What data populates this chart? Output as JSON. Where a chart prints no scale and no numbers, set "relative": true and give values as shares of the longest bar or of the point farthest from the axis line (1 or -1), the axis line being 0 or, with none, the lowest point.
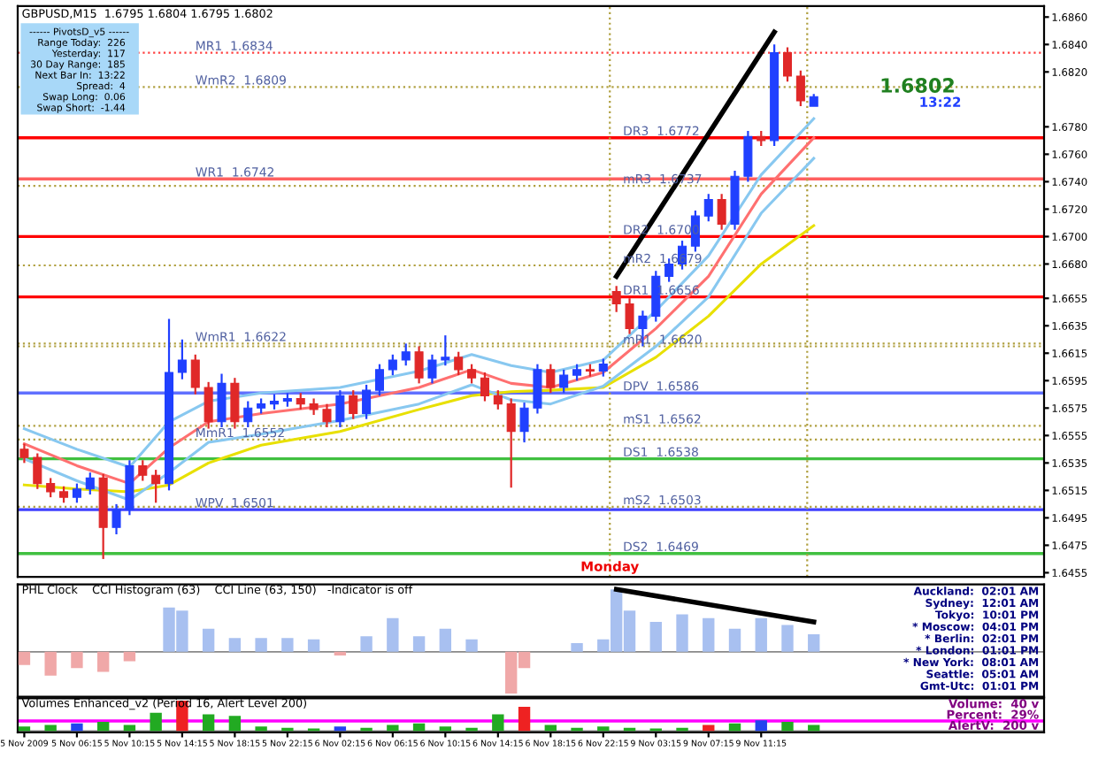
{
  "chart_data": [
    {
      "type": "candlestick",
      "title": "GBPUSD,M15  1.6795 1.6804 1.6795 1.6802",
      "categories": [
        null,
        null,
        null,
        null,
        null,
        null,
        null,
        null,
        null,
        null,
        null,
        null,
        null,
        null,
        null,
        null,
        null,
        null,
        null,
        null,
        null,
        null,
        null,
        null,
        null,
        null,
        null,
        null,
        null,
        null,
        null,
        null,
        null,
        null,
        null,
        null,
        null,
        null,
        null,
        null,
        null,
        null,
        null,
        null,
        null,
        null,
        null,
        null,
        null,
        null,
        null,
        null,
        null,
        null,
        null,
        null,
        null,
        null,
        null,
        null,
        null,
        null,
        null,
        null,
        null,
        null,
        null,
        null,
        null,
        null,
        null,
        null,
        null,
        null,
        null,
        null,
        null,
        null
      ],
      "ohlc": [
        [
          1.6545,
          1.6549,
          1.6535,
          1.6539
        ],
        [
          1.6539,
          1.6542,
          1.6516,
          1.652
        ],
        [
          1.652,
          1.6524,
          1.651,
          1.6514
        ],
        [
          1.6514,
          1.6518,
          1.6506,
          1.651
        ],
        [
          1.651,
          1.652,
          1.6506,
          1.6516
        ],
        [
          1.6516,
          1.6528,
          1.6512,
          1.6524
        ],
        [
          1.6524,
          1.6527,
          1.6465,
          1.6488
        ],
        [
          1.6488,
          1.6505,
          1.6483,
          1.6501
        ],
        [
          1.6501,
          1.6537,
          1.6497,
          1.6533
        ],
        [
          1.6533,
          1.6537,
          1.6522,
          1.6526
        ],
        [
          1.6526,
          1.653,
          1.6506,
          1.652
        ],
        [
          1.652,
          1.664,
          1.6515,
          1.6601
        ],
        [
          1.6601,
          1.6625,
          1.6596,
          1.661
        ],
        [
          1.661,
          1.6614,
          1.6585,
          1.659
        ],
        [
          1.659,
          1.6594,
          1.656,
          1.6565
        ],
        [
          1.6565,
          1.66,
          1.6561,
          1.6593
        ],
        [
          1.6593,
          1.6597,
          1.656,
          1.6565
        ],
        [
          1.6565,
          1.658,
          1.6561,
          1.6575
        ],
        [
          1.6575,
          1.6582,
          1.6571,
          1.6578
        ],
        [
          1.6578,
          1.6585,
          1.6574,
          1.658
        ],
        [
          1.658,
          1.6586,
          1.6576,
          1.6582
        ],
        [
          1.6582,
          1.6586,
          1.6574,
          1.6578
        ],
        [
          1.6578,
          1.6582,
          1.657,
          1.6574
        ],
        [
          1.6574,
          1.6578,
          1.6561,
          1.6565
        ],
        [
          1.6565,
          1.6588,
          1.6561,
          1.6584
        ],
        [
          1.6584,
          1.6588,
          1.6567,
          1.6571
        ],
        [
          1.6571,
          1.6592,
          1.6567,
          1.6588
        ],
        [
          1.6588,
          1.6607,
          1.6584,
          1.6603
        ],
        [
          1.6603,
          1.6614,
          1.6599,
          1.661
        ],
        [
          1.661,
          1.6622,
          1.6606,
          1.6616
        ],
        [
          1.6616,
          1.662,
          1.6593,
          1.6597
        ],
        [
          1.6597,
          1.6614,
          1.6593,
          1.661
        ],
        [
          1.661,
          1.6628,
          1.6606,
          1.6612
        ],
        [
          1.6612,
          1.6616,
          1.6599,
          1.6603
        ],
        [
          1.6603,
          1.6607,
          1.6593,
          1.6597
        ],
        [
          1.6597,
          1.6601,
          1.658,
          1.6584
        ],
        [
          1.6584,
          1.6588,
          1.6574,
          1.6578
        ],
        [
          1.6578,
          1.6582,
          1.6517,
          1.6558
        ],
        [
          1.6558,
          1.6579,
          1.655,
          1.6575
        ],
        [
          1.6575,
          1.6607,
          1.6571,
          1.6603
        ],
        [
          1.6603,
          1.6607,
          1.6586,
          1.659
        ],
        [
          1.659,
          1.6603,
          1.6586,
          1.6599
        ],
        [
          1.6599,
          1.6607,
          1.6595,
          1.6603
        ],
        [
          1.6603,
          1.6607,
          1.6598,
          1.6602
        ],
        [
          1.6602,
          1.6611,
          1.6598,
          1.6607
        ],
        [
          1.666,
          1.6664,
          1.6645,
          1.6651
        ],
        [
          1.6651,
          1.6655,
          1.6629,
          1.6633
        ],
        [
          1.6633,
          1.6646,
          1.662,
          1.6642
        ],
        [
          1.6642,
          1.6675,
          1.6638,
          1.6671
        ],
        [
          1.6671,
          1.6684,
          1.6667,
          1.668
        ],
        [
          1.668,
          1.6697,
          1.6676,
          1.6693
        ],
        [
          1.6693,
          1.6719,
          1.6689,
          1.6715
        ],
        [
          1.6715,
          1.6731,
          1.6711,
          1.6727
        ],
        [
          1.6727,
          1.6731,
          1.6705,
          1.6709
        ],
        [
          1.6709,
          1.6748,
          1.6705,
          1.6744
        ],
        [
          1.6744,
          1.6777,
          1.674,
          1.6773
        ],
        [
          1.6773,
          1.6777,
          1.6766,
          1.677
        ],
        [
          1.677,
          1.684,
          1.6766,
          1.6834
        ],
        [
          1.6834,
          1.6838,
          1.6813,
          1.6817
        ],
        [
          1.6817,
          1.6821,
          1.6795,
          1.6799
        ],
        [
          1.6795,
          1.6804,
          1.6795,
          1.6802
        ],
        null,
        null,
        null,
        null,
        null,
        null,
        null,
        null,
        null,
        null,
        null,
        null,
        null,
        null,
        null,
        null,
        null
      ],
      "colors": [
        "#e02828",
        "#e02828",
        "#e02828",
        "#e02828",
        "#2040ff",
        "#2040ff",
        "#e02828",
        "#2040ff",
        "#2040ff",
        "#e02828",
        "#e02828",
        "#2040ff",
        "#2040ff",
        "#e02828",
        "#e02828",
        "#2040ff",
        "#e02828",
        "#2040ff",
        "#2040ff",
        "#2040ff",
        "#2040ff",
        "#e02828",
        "#e02828",
        "#e02828",
        "#2040ff",
        "#e02828",
        "#2040ff",
        "#2040ff",
        "#2040ff",
        "#2040ff",
        "#e02828",
        "#2040ff",
        "#2040ff",
        "#e02828",
        "#e02828",
        "#e02828",
        "#e02828",
        "#e02828",
        "#2040ff",
        "#2040ff",
        "#e02828",
        "#2040ff",
        "#2040ff",
        "#e02828",
        "#2040ff",
        "#e02828",
        "#e02828",
        "#2040ff",
        "#2040ff",
        "#2040ff",
        "#2040ff",
        "#2040ff",
        "#2040ff",
        "#e02828",
        "#2040ff",
        "#2040ff",
        "#e02828",
        "#2040ff",
        "#e02828",
        "#e02828",
        "#2040ff",
        null,
        null,
        null,
        null,
        null,
        null,
        null,
        null,
        null,
        null,
        null,
        null,
        null,
        null,
        null,
        null,
        null
      ],
      "series": [
        {
          "type": "line",
          "color": "#e8e000",
          "values": [
            1.6519,
            null,
            null,
            null,
            1.6516,
            null,
            null,
            null,
            1.6514,
            null,
            null,
            1.6519,
            null,
            null,
            1.6535,
            null,
            null,
            null,
            1.6548,
            null,
            null,
            null,
            null,
            null,
            1.6558,
            null,
            null,
            null,
            null,
            null,
            1.6574,
            null,
            null,
            null,
            1.6584,
            null,
            null,
            1.6587,
            null,
            null,
            1.6588,
            null,
            null,
            null,
            1.659,
            null,
            null,
            null,
            1.6612,
            null,
            null,
            null,
            1.6642,
            null,
            null,
            null,
            1.668,
            null,
            null,
            null,
            1.6708,
            null,
            null,
            null,
            null,
            null,
            null,
            null,
            null,
            null,
            null,
            null,
            null,
            null,
            null,
            null,
            null,
            null
          ]
        },
        {
          "type": "line",
          "color": "#ff7070",
          "values": [
            1.6549,
            null,
            null,
            null,
            1.6533,
            null,
            null,
            null,
            1.652,
            null,
            null,
            1.6546,
            null,
            null,
            1.6565,
            null,
            null,
            null,
            1.6571,
            null,
            null,
            null,
            null,
            null,
            1.6578,
            null,
            null,
            null,
            null,
            null,
            1.659,
            null,
            null,
            null,
            1.6603,
            null,
            null,
            1.6593,
            null,
            null,
            1.659,
            null,
            null,
            null,
            1.6601,
            null,
            null,
            null,
            1.6633,
            null,
            null,
            null,
            1.6671,
            null,
            null,
            null,
            1.6731,
            null,
            null,
            null,
            1.6772,
            null,
            null,
            null,
            null,
            null,
            null,
            null,
            null,
            null,
            null,
            null,
            null,
            null,
            null,
            null,
            null,
            null
          ]
        },
        {
          "type": "line",
          "color": "#88c8f0",
          "values": [
            1.656,
            null,
            null,
            null,
            1.6545,
            null,
            null,
            null,
            1.6532,
            null,
            null,
            1.6565,
            null,
            null,
            1.658,
            null,
            null,
            null,
            1.6586,
            null,
            null,
            null,
            null,
            null,
            1.659,
            null,
            null,
            null,
            null,
            null,
            1.6602,
            null,
            null,
            null,
            1.6614,
            null,
            null,
            1.6606,
            null,
            null,
            1.6601,
            null,
            null,
            null,
            1.661,
            null,
            null,
            null,
            1.6646,
            null,
            null,
            null,
            1.6686,
            null,
            null,
            null,
            1.6745,
            null,
            null,
            null,
            1.6786,
            null,
            null,
            null,
            null,
            null,
            null,
            null,
            null,
            null,
            null,
            null,
            null,
            null,
            null,
            null,
            null,
            null
          ]
        },
        {
          "type": "line",
          "color": "#88c8f0",
          "values": [
            1.6538,
            null,
            null,
            null,
            1.6522,
            null,
            null,
            null,
            1.6508,
            null,
            null,
            1.6528,
            null,
            null,
            1.655,
            null,
            null,
            null,
            1.6556,
            null,
            null,
            null,
            null,
            null,
            1.6566,
            null,
            null,
            null,
            null,
            null,
            1.6578,
            null,
            null,
            null,
            1.6592,
            null,
            null,
            1.6581,
            null,
            null,
            1.6578,
            null,
            null,
            null,
            1.6591,
            null,
            null,
            null,
            1.662,
            null,
            null,
            null,
            1.6656,
            null,
            null,
            null,
            1.6717,
            null,
            null,
            null,
            1.6757,
            null,
            null,
            null,
            null,
            null,
            null,
            null,
            null,
            null,
            null,
            null,
            null,
            null,
            null,
            null,
            null,
            null
          ]
        },
        {
          "type": "line",
          "color": "#000000",
          "values": [
            null,
            null,
            null,
            null,
            null,
            null,
            null,
            null,
            null,
            null,
            null,
            null,
            null,
            null,
            null,
            null,
            null,
            null,
            null,
            null,
            null,
            null,
            null,
            null,
            null,
            null,
            null,
            null,
            null,
            null,
            null,
            null,
            null,
            null,
            null,
            null,
            null,
            null,
            null,
            null,
            null,
            null,
            null,
            null,
            null,
            1.6671,
            null,
            null,
            null,
            null,
            null,
            null,
            null,
            null,
            null,
            null,
            null,
            1.6849,
            null,
            null,
            null,
            null,
            null,
            null,
            null,
            null,
            null,
            null,
            null,
            null,
            null,
            null,
            null,
            null,
            null,
            null,
            null,
            null
          ]
        }
      ],
      "ref_lines": [
        {
          "axis": "y",
          "value": 1.6834,
          "label": "MR1  1.6834",
          "color": "#ff4040",
          "line_style": "dotted"
        },
        {
          "axis": "y",
          "value": 1.6809,
          "label": "WmR2  1.6809",
          "color": "#b0a040",
          "line_style": "dotted"
        },
        {
          "axis": "y",
          "value": 1.6742,
          "label": "WR1  1.6742",
          "color": "#ff6060",
          "line_style": "solid"
        },
        {
          "axis": "y",
          "value": 1.6622,
          "label": "WmR1  1.6622",
          "color": "#b0a040",
          "line_style": "dotted"
        },
        {
          "axis": "y",
          "value": 1.6552,
          "label": "MmR1  1.6552",
          "color": "#b0a040",
          "line_style": "dotted"
        },
        {
          "axis": "y",
          "value": 1.6501,
          "label": "WPV  1.6501",
          "color": "#4040ff",
          "line_style": "solid"
        },
        {
          "axis": "y",
          "value": 1.6772,
          "label": "DR3  1.6772",
          "color": "#ff0000",
          "line_style": "solid"
        },
        {
          "axis": "y",
          "value": 1.6737,
          "label": "mR3  1.6737",
          "color": "#b0a040",
          "line_style": "dotted"
        },
        {
          "axis": "y",
          "value": 1.67,
          "label": "DR2  1.6700",
          "color": "#ff0000",
          "line_style": "solid"
        },
        {
          "axis": "y",
          "value": 1.6679,
          "label": "mR2  1.6679",
          "color": "#b0a040",
          "line_style": "dotted"
        },
        {
          "axis": "y",
          "value": 1.6656,
          "label": "DR1  1.6656",
          "color": "#ff0000",
          "line_style": "solid"
        },
        {
          "axis": "y",
          "value": 1.662,
          "label": "mR1  1.6620",
          "color": "#b0a040",
          "line_style": "dotted"
        },
        {
          "axis": "y",
          "value": 1.6586,
          "label": "DPV  1.6586",
          "color": "#6070ff",
          "line_style": "solid"
        },
        {
          "axis": "y",
          "value": 1.6562,
          "label": "mS1  1.6562",
          "color": "#b0a040",
          "line_style": "dotted"
        },
        {
          "axis": "y",
          "value": 1.6538,
          "label": "DS1  1.6538",
          "color": "#40c040",
          "line_style": "solid"
        },
        {
          "axis": "y",
          "value": 1.6503,
          "label": "mS2  1.6503",
          "color": "#b0a040",
          "line_style": "dotted"
        },
        {
          "axis": "y",
          "value": 1.6469,
          "label": "DS2  1.6469",
          "color": "#40c040",
          "line_style": "solid"
        }
      ],
      "annotations": [
        "------ PivotsD_v5 ------",
        "Range Today:  226",
        "Yesterday:  117",
        "30 Day Range:  185",
        "Next Bar In:  13:22",
        "Spread:  4",
        "Swap Long:  0.06",
        "Swap Short:  -1.44",
        "1.6802",
        "13:22",
        "Monday"
      ],
      "ylim": [
        1.6452,
        1.6868
      ],
      "yticks": [
        {
          "value": 1.686,
          "label": "1.6860"
        },
        {
          "value": 1.684,
          "label": "1.6840"
        },
        {
          "value": 1.682,
          "label": "1.6820"
        },
        {
          "value": 1.678,
          "label": "1.6780"
        },
        {
          "value": 1.676,
          "label": "1.6760"
        },
        {
          "value": 1.674,
          "label": "1.6740"
        },
        {
          "value": 1.672,
          "label": "1.6720"
        },
        {
          "value": 1.67,
          "label": "1.6700"
        },
        {
          "value": 1.668,
          "label": "1.6680"
        },
        {
          "value": 1.6655,
          "label": "1.6655"
        },
        {
          "value": 1.6635,
          "label": "1.6635"
        },
        {
          "value": 1.6615,
          "label": "1.6615"
        },
        {
          "value": 1.6595,
          "label": "1.6595"
        },
        {
          "value": 1.6575,
          "label": "1.6575"
        },
        {
          "value": 1.6555,
          "label": "1.6555"
        },
        {
          "value": 1.6535,
          "label": "1.6535"
        },
        {
          "value": 1.6515,
          "label": "1.6515"
        },
        {
          "value": 1.6495,
          "label": "1.6495"
        },
        {
          "value": 1.6475,
          "label": "1.6475"
        },
        {
          "value": 1.6455,
          "label": "1.6455"
        }
      ],
      "tick_labels": "y"
    },
    {
      "type": "bar",
      "title": "PHL Clock    CCI Histogram (63)    CCI Line (63, 150)   -Indicator is off",
      "relative": true,
      "categories": [
        null,
        null,
        null,
        null,
        null,
        null,
        null,
        null,
        null,
        null,
        null,
        null,
        null,
        null,
        null,
        null,
        null,
        null,
        null,
        null,
        null,
        null,
        null,
        null,
        null,
        null,
        null,
        null,
        null,
        null,
        null,
        null,
        null,
        null,
        null,
        null,
        null,
        null,
        null,
        null,
        null,
        null,
        null,
        null,
        null,
        null,
        null,
        null,
        null,
        null,
        null,
        null,
        null,
        null,
        null,
        null,
        null,
        null,
        null,
        null,
        null,
        null,
        null,
        null,
        null,
        null,
        null,
        null,
        null,
        null,
        null,
        null,
        null,
        null,
        null,
        null,
        null,
        null
      ],
      "series": [
        {
          "type": "bar",
          "values": [
            -0.21,
            null,
            -0.38,
            null,
            -0.26,
            null,
            -0.32,
            null,
            -0.15,
            null,
            null,
            0.71,
            0.66,
            null,
            0.37,
            null,
            0.22,
            null,
            0.22,
            null,
            0.22,
            null,
            0.2,
            null,
            -0.06,
            null,
            0.25,
            null,
            0.54,
            null,
            0.25,
            null,
            0.37,
            null,
            0.2,
            null,
            null,
            -0.67,
            -0.26,
            null,
            null,
            null,
            0.14,
            null,
            0.2,
            1.0,
            0.66,
            null,
            0.48,
            null,
            0.6,
            null,
            0.54,
            null,
            0.37,
            null,
            0.54,
            null,
            0.43,
            null,
            0.28,
            null,
            null,
            null,
            null,
            null,
            null,
            null,
            null,
            null,
            null,
            null,
            null,
            null,
            null,
            null,
            null,
            null
          ],
          "colors": [
            "#f0a8a8",
            null,
            "#f0a8a8",
            null,
            "#f0a8a8",
            null,
            "#f0a8a8",
            null,
            "#f0a8a8",
            null,
            "#f0a8a8",
            "#a8c0f0",
            "#a8c0f0",
            null,
            "#a8c0f0",
            null,
            "#a8c0f0",
            null,
            "#a8c0f0",
            null,
            "#a8c0f0",
            null,
            "#a8c0f0",
            null,
            "#f0a8a8",
            null,
            "#a8c0f0",
            null,
            "#a8c0f0",
            null,
            "#a8c0f0",
            null,
            "#a8c0f0",
            null,
            "#a8c0f0",
            null,
            "#f0a8a8",
            "#f0a8a8",
            "#f0a8a8",
            null,
            "#f0a8a8",
            null,
            "#a8c0f0",
            null,
            "#a8c0f0",
            "#a8c0f0",
            "#a8c0f0",
            null,
            "#a8c0f0",
            null,
            "#a8c0f0",
            null,
            "#a8c0f0",
            null,
            "#a8c0f0",
            null,
            "#a8c0f0",
            null,
            "#a8c0f0",
            null,
            "#a8c0f0",
            null,
            null,
            null,
            null,
            null,
            null,
            null,
            null,
            null,
            null,
            null,
            null,
            null,
            null,
            null,
            null,
            null
          ]
        },
        {
          "type": "line",
          "color": "#000000",
          "values": [
            null,
            null,
            null,
            null,
            null,
            null,
            null,
            null,
            null,
            null,
            null,
            null,
            null,
            null,
            null,
            null,
            null,
            null,
            null,
            null,
            null,
            null,
            null,
            null,
            null,
            null,
            null,
            null,
            null,
            null,
            null,
            null,
            null,
            null,
            null,
            null,
            null,
            null,
            null,
            null,
            null,
            null,
            null,
            null,
            null,
            1.0,
            null,
            null,
            null,
            null,
            null,
            null,
            null,
            null,
            null,
            null,
            null,
            null,
            null,
            null,
            0.48,
            null,
            null,
            null,
            null,
            null,
            null,
            null,
            null,
            null,
            null,
            null,
            null,
            null,
            null,
            null,
            null,
            null
          ]
        }
      ],
      "annotations": [
        "Auckland:  02:01 AM",
        "Sydney:  12:01 AM",
        "Tokyo:  10:01 PM",
        "* Moscow:  04:01 PM",
        "* Berlin:  02:01 PM",
        "* London:  01:01 PM",
        "* New York:  08:01 AM",
        "Seattle:  05:01 AM",
        "Gmt-Utc:  01:01 PM"
      ],
      "tick_labels": false
    },
    {
      "type": "bar",
      "title": "Volumes Enhanced_v2 (Period 16, Alert Level 200)",
      "relative": true,
      "categories": [
        "5 Nov 2009",
        null,
        null,
        null,
        "5 Nov 06:15",
        null,
        null,
        null,
        "5 Nov 10:15",
        null,
        null,
        null,
        "5 Nov 14:15",
        null,
        null,
        null,
        "5 Nov 18:15",
        null,
        null,
        null,
        "5 Nov 22:15",
        null,
        null,
        null,
        "6 Nov 02:15",
        null,
        null,
        null,
        "6 Nov 06:15",
        null,
        null,
        null,
        "6 Nov 10:15",
        null,
        null,
        null,
        "6 Nov 14:15",
        null,
        null,
        null,
        "6 Nov 18:15",
        null,
        null,
        null,
        "6 Nov 22:15",
        null,
        null,
        null,
        "9 Nov 03:15",
        null,
        null,
        null,
        "9 Nov 07:15",
        null,
        null,
        null,
        "9 Nov 11:15",
        null,
        null,
        null,
        null,
        null,
        null,
        null,
        null,
        null,
        null,
        null,
        null,
        null,
        null,
        null,
        null,
        null,
        null,
        null,
        null,
        null
      ],
      "series": [
        {
          "type": "bar",
          "values": [
            0.15,
            null,
            0.2,
            null,
            0.25,
            null,
            0.3,
            null,
            0.2,
            null,
            0.6,
            null,
            1.0,
            null,
            0.55,
            null,
            0.5,
            null,
            0.15,
            null,
            0.1,
            null,
            0.08,
            null,
            0.15,
            null,
            0.1,
            null,
            0.2,
            null,
            0.25,
            null,
            0.15,
            null,
            0.1,
            null,
            0.55,
            null,
            0.8,
            null,
            0.2,
            null,
            0.1,
            null,
            0.15,
            null,
            0.1,
            null,
            0.08,
            null,
            0.1,
            null,
            0.2,
            null,
            0.25,
            null,
            0.35,
            null,
            0.3,
            null,
            0.2,
            null,
            null,
            null,
            null,
            null,
            null,
            null,
            null,
            null,
            null,
            null,
            null,
            null,
            null,
            null,
            null,
            null
          ],
          "colors": [
            "#22aa22",
            null,
            "#22aa22",
            null,
            "#2244ee",
            null,
            "#22aa22",
            null,
            "#22aa22",
            null,
            "#22aa22",
            null,
            "#ee2222",
            null,
            "#22aa22",
            null,
            "#22aa22",
            null,
            "#22aa22",
            null,
            "#22aa22",
            null,
            "#22aa22",
            null,
            "#2244ee",
            null,
            "#22aa22",
            null,
            "#22aa22",
            null,
            "#22aa22",
            null,
            "#22aa22",
            null,
            "#22aa22",
            null,
            "#22aa22",
            null,
            "#ee2222",
            null,
            "#22aa22",
            null,
            "#22aa22",
            null,
            "#22aa22",
            null,
            "#22aa22",
            null,
            "#22aa22",
            null,
            "#22aa22",
            null,
            "#ee2222",
            null,
            "#22aa22",
            null,
            "#2244ee",
            null,
            "#22aa22",
            null,
            "#22aa22",
            null,
            null,
            null,
            null,
            null,
            null,
            null,
            null,
            null,
            null,
            null,
            null,
            null,
            null,
            null,
            null,
            null
          ]
        }
      ],
      "ref_lines": [
        {
          "axis": "y",
          "value": 0.33,
          "color": "#ff00ff",
          "line_style": "solid"
        }
      ],
      "annotations": [
        "Volume:  40 v",
        "Percent:  29%",
        "AlertV:  200 v"
      ],
      "tick_labels": "x"
    }
  ]
}
